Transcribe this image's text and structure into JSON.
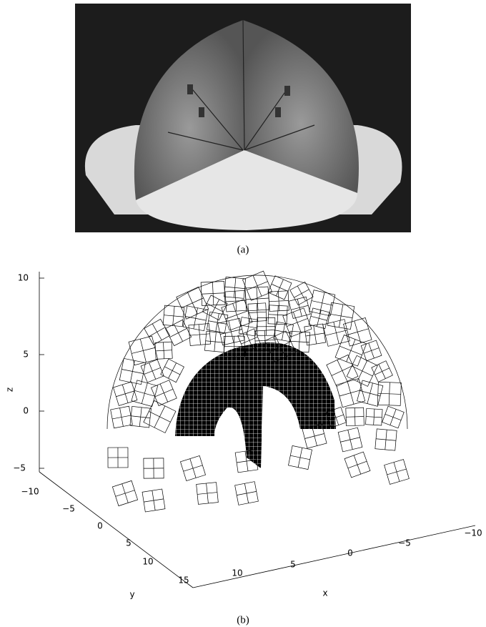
{
  "figure": {
    "panel_a": {
      "caption": "(a)"
    },
    "panel_b": {
      "caption": "(b)",
      "axes": {
        "z": {
          "label": "z",
          "ticks": [
            "10",
            "5",
            "0",
            "−5"
          ]
        },
        "y": {
          "label": "y",
          "ticks": [
            "−10",
            "−5",
            "0",
            "5",
            "10",
            "15"
          ]
        },
        "x": {
          "label": "x",
          "ticks": [
            "10",
            "5",
            "0",
            "−5",
            "−10"
          ]
        }
      }
    }
  }
}
